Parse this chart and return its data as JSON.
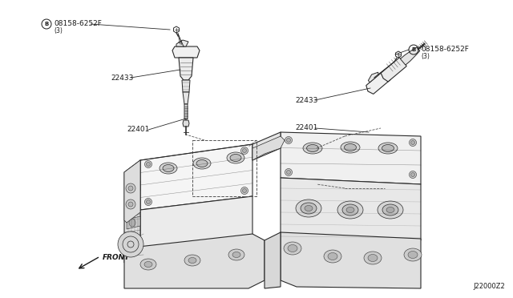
{
  "bg_color": "#ffffff",
  "fig_width": 6.4,
  "fig_height": 3.72,
  "dpi": 100,
  "line_color": "#2a2a2a",
  "text_color": "#1a1a1a",
  "labels": {
    "bolt_label": "08158-6252F",
    "bolt_sub": "(3)",
    "coil_label": "22433",
    "spark_label": "22401",
    "front": "FRONT",
    "diagram_id": "J22000Z2"
  }
}
